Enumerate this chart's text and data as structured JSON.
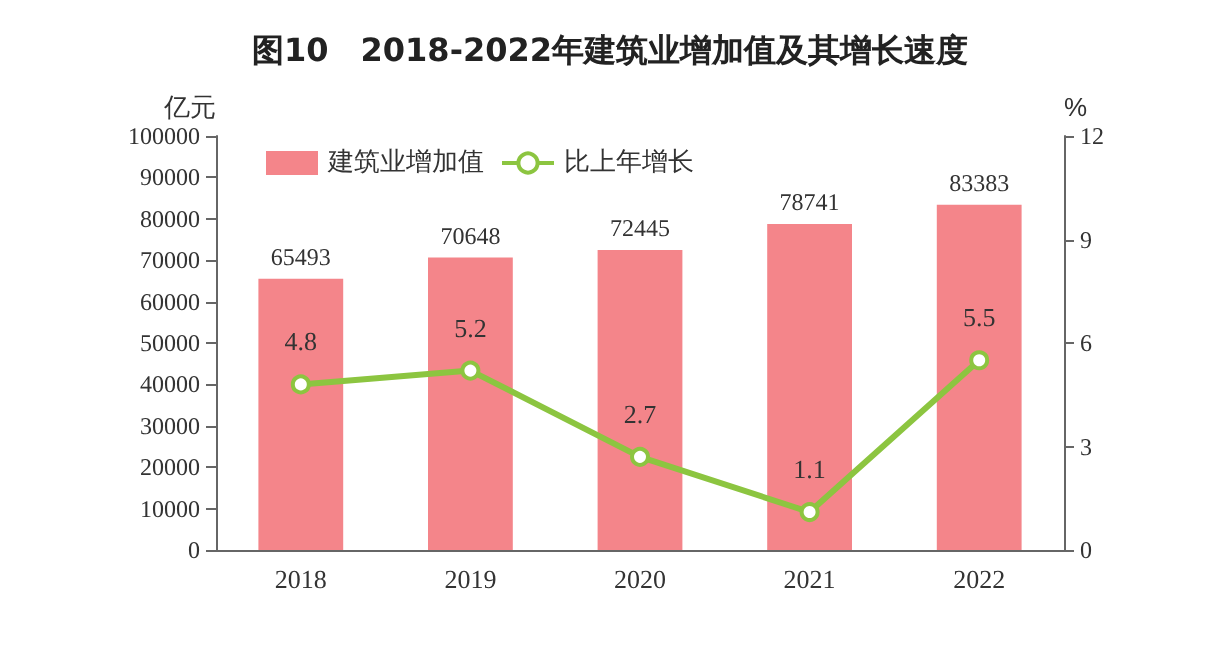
{
  "chart_data": {
    "type": "bar",
    "title": "图10　2018-2022年建筑业增加值及其增长速度",
    "ylabel": "亿元",
    "y2label": "%",
    "categories": [
      "2018",
      "2019",
      "2020",
      "2021",
      "2022"
    ],
    "series": [
      {
        "name": "建筑业增加值",
        "color": "#f4858a",
        "values": [
          65493,
          70648,
          72445,
          78741,
          83383
        ]
      },
      {
        "name": "比上年增长",
        "type": "line",
        "axis": "y2",
        "color": "#8cc540",
        "marker": "circle",
        "values": [
          4.8,
          5.2,
          2.7,
          1.1,
          5.5
        ]
      }
    ],
    "ylim": [
      0,
      100000
    ],
    "yticks": [
      0,
      10000,
      20000,
      30000,
      40000,
      50000,
      60000,
      70000,
      80000,
      90000,
      100000
    ],
    "y2lim": [
      0,
      12
    ],
    "y2ticks": [
      0,
      3,
      6,
      9,
      12
    ],
    "data_labels": true,
    "legend": "top left",
    "grid": false
  }
}
